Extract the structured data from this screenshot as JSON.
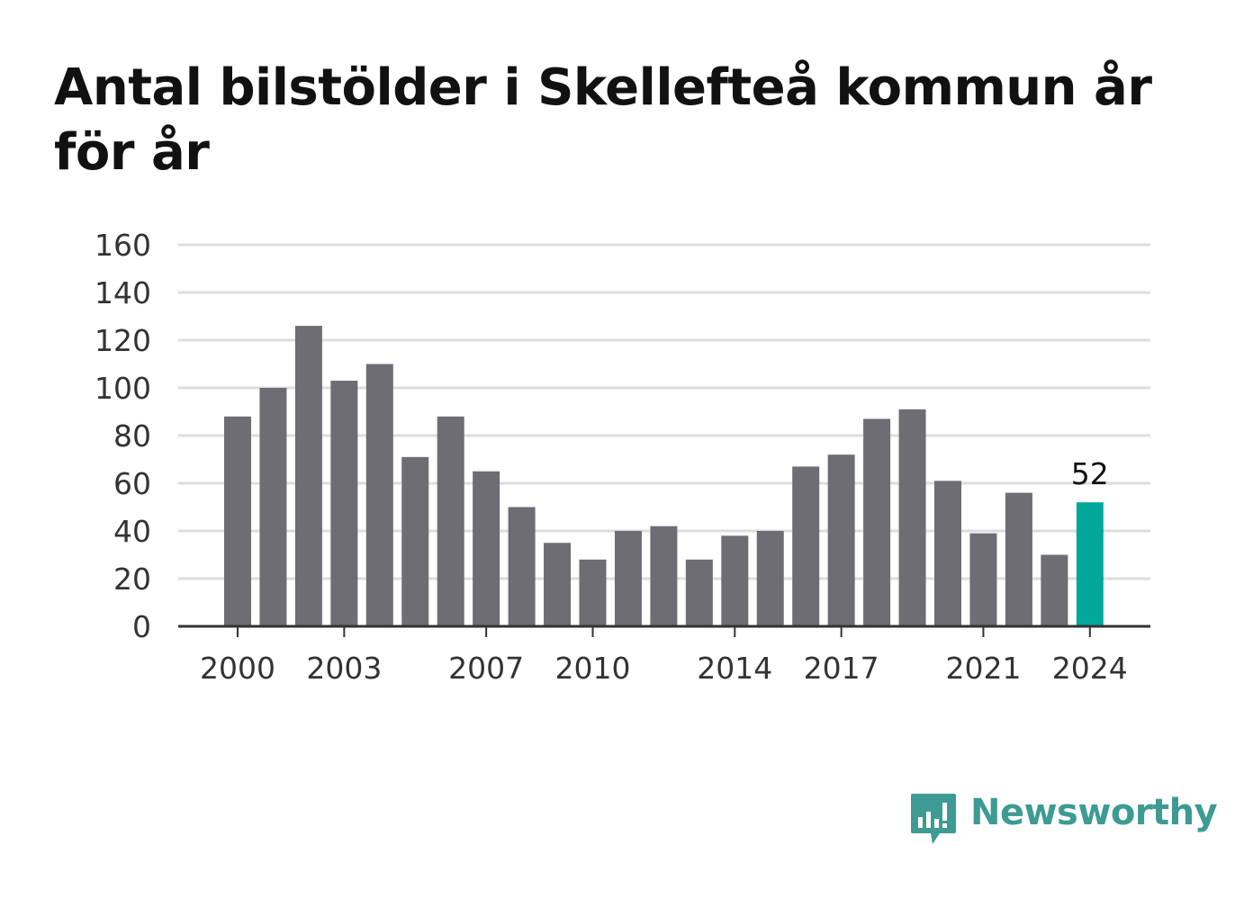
{
  "title": "Antal bilstölder i Skellefteå kommun år för år",
  "brand": {
    "name": "Newsworthy",
    "color": "#3d9b93",
    "icon": "bar-chart-speech-bubble-icon"
  },
  "colors": {
    "bar": "#6e6d73",
    "highlight": "#00a89a",
    "grid": "#dddddd",
    "axis": "#333333"
  },
  "chart_data": {
    "type": "bar",
    "categories": [
      "2000",
      "2001",
      "2002",
      "2003",
      "2004",
      "2005",
      "2006",
      "2007",
      "2008",
      "2009",
      "2010",
      "2011",
      "2012",
      "2013",
      "2014",
      "2015",
      "2016",
      "2017",
      "2018",
      "2019",
      "2020",
      "2021",
      "2022",
      "2023",
      "2024"
    ],
    "values": [
      88,
      100,
      126,
      103,
      110,
      71,
      88,
      65,
      50,
      35,
      28,
      40,
      42,
      28,
      38,
      40,
      67,
      72,
      87,
      91,
      61,
      39,
      56,
      30,
      52
    ],
    "x_tick_labels": [
      "2000",
      "2003",
      "2007",
      "2010",
      "2014",
      "2017",
      "2021",
      "2024"
    ],
    "y_ticks": [
      0,
      20,
      40,
      60,
      80,
      100,
      120,
      140,
      160
    ],
    "ylim": [
      0,
      160
    ],
    "highlight": {
      "category": "2024",
      "label": "52"
    },
    "grid": true,
    "xlabel": "",
    "ylabel": ""
  }
}
